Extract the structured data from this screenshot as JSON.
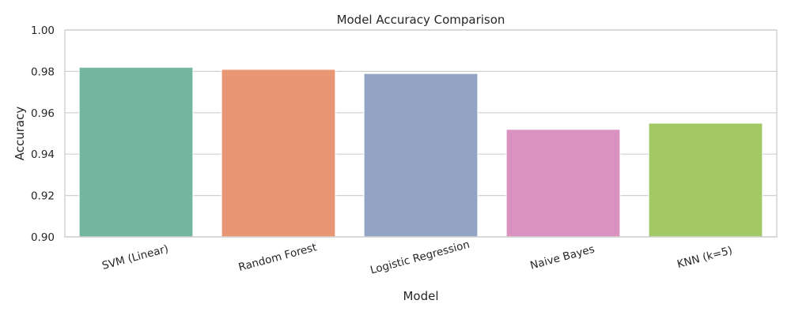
{
  "chart_data": {
    "type": "bar",
    "title": "Model Accuracy Comparison",
    "xlabel": "Model",
    "ylabel": "Accuracy",
    "categories": [
      "SVM (Linear)",
      "Random Forest",
      "Logistic Regression",
      "Naive Bayes",
      "KNN (k=5)"
    ],
    "values": [
      0.982,
      0.981,
      0.979,
      0.952,
      0.955
    ],
    "colors": [
      "#73b6a0",
      "#e99674",
      "#93a3c3",
      "#da93c0",
      "#a2c966"
    ],
    "ylim": [
      0.9,
      1.0
    ],
    "yticks": [
      "0.90",
      "0.92",
      "0.94",
      "0.96",
      "0.98",
      "1.00"
    ],
    "grid": "horizontal",
    "x_tick_rotation_deg": -15
  }
}
